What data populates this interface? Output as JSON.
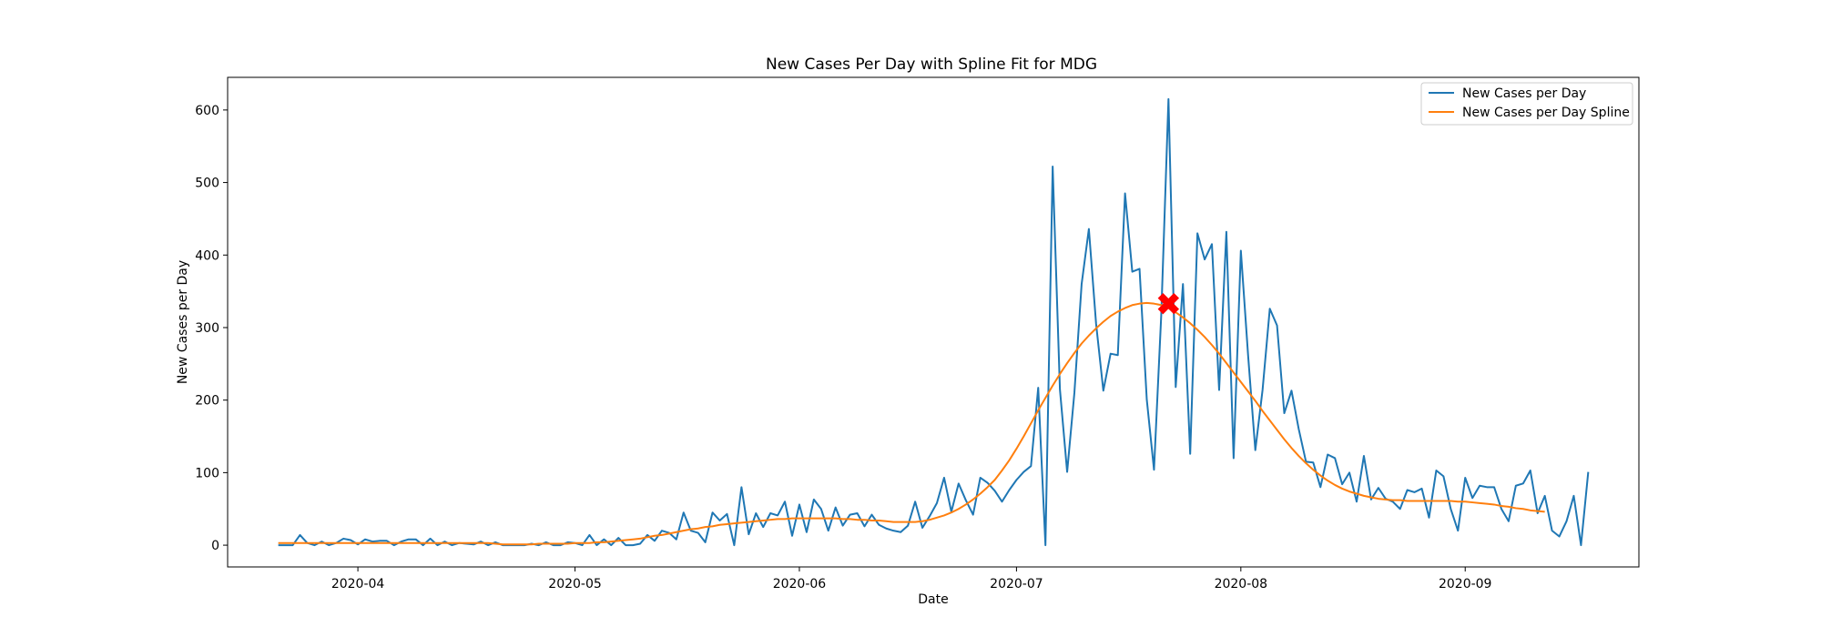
{
  "chart_data": {
    "type": "line",
    "title": "New Cases Per Day with Spline Fit for MDG",
    "xlabel": "Date",
    "ylabel": "New Cases per Day",
    "x_start": "2020-03-21",
    "x_end": "2020-09-18",
    "xlim": [
      "2020-03-14",
      "2020-09-25"
    ],
    "ylim": [
      -30,
      645
    ],
    "x_ticks": [
      "2020-04",
      "2020-05",
      "2020-06",
      "2020-07",
      "2020-08",
      "2020-09"
    ],
    "y_ticks": [
      0,
      100,
      200,
      300,
      400,
      500,
      600
    ],
    "grid": false,
    "legend_position": "top-right",
    "series": [
      {
        "name": "New Cases per Day",
        "color": "#1f77b4",
        "values": [
          0,
          0,
          0,
          14,
          3,
          0,
          5,
          0,
          3,
          9,
          7,
          1,
          8,
          5,
          6,
          6,
          0,
          5,
          8,
          8,
          0,
          9,
          0,
          5,
          0,
          3,
          2,
          1,
          5,
          0,
          4,
          0,
          0,
          0,
          0,
          2,
          0,
          4,
          0,
          0,
          4,
          3,
          0,
          14,
          0,
          8,
          0,
          10,
          0,
          0,
          2,
          14,
          6,
          20,
          17,
          8,
          45,
          20,
          17,
          4,
          45,
          34,
          43,
          0,
          80,
          15,
          44,
          25,
          44,
          41,
          60,
          13,
          56,
          18,
          63,
          50,
          20,
          52,
          27,
          42,
          44,
          26,
          42,
          28,
          23,
          20,
          18,
          27,
          60,
          24,
          40,
          58,
          93,
          46,
          85,
          62,
          42,
          93,
          86,
          75,
          60,
          76,
          90,
          101,
          109,
          217,
          0,
          522,
          215,
          101,
          210,
          360,
          436,
          305,
          213,
          264,
          262,
          485,
          377,
          381,
          201,
          104,
          317,
          615,
          218,
          360,
          126,
          430,
          394,
          415,
          214,
          432,
          120,
          406,
          262,
          131,
          214,
          326,
          303,
          182,
          213,
          160,
          115,
          114,
          80,
          125,
          120,
          84,
          100,
          60,
          123,
          63,
          79,
          64,
          60,
          50,
          76,
          73,
          78,
          38,
          103,
          95,
          50,
          20,
          93,
          65,
          82,
          80,
          80,
          50,
          33,
          82,
          85,
          103,
          44,
          68,
          20,
          12,
          33,
          68,
          0,
          101
        ]
      },
      {
        "name": "New Cases per Day Spline",
        "color": "#ff7f0e",
        "values": [
          3,
          3,
          3,
          3,
          3,
          3,
          3,
          3,
          3,
          3,
          3,
          3,
          3,
          3,
          3,
          3,
          3,
          3,
          3,
          3,
          3,
          3,
          3,
          3,
          3,
          3,
          3,
          3,
          3,
          3,
          2,
          1,
          1,
          1,
          1,
          1,
          2,
          2,
          2,
          2,
          2,
          3,
          3,
          3,
          4,
          4,
          5,
          6,
          7,
          8,
          9,
          11,
          13,
          14,
          16,
          18,
          20,
          22,
          23,
          25,
          26,
          28,
          29,
          30,
          31,
          32,
          33,
          34,
          35,
          36,
          36,
          37,
          37,
          37,
          37,
          37,
          37,
          37,
          36,
          36,
          35,
          35,
          34,
          34,
          33,
          32,
          32,
          32,
          32,
          33,
          35,
          38,
          41,
          45,
          50,
          56,
          63,
          71,
          80,
          90,
          103,
          117,
          133,
          150,
          168,
          186,
          203,
          220,
          236,
          251,
          265,
          278,
          289,
          299,
          308,
          316,
          322,
          327,
          331,
          333,
          334,
          333,
          331,
          327,
          321,
          314,
          306,
          297,
          287,
          276,
          264,
          251,
          238,
          225,
          212,
          199,
          185,
          172,
          159,
          146,
          134,
          123,
          113,
          104,
          96,
          89,
          83,
          78,
          74,
          71,
          68,
          66,
          64,
          63,
          62,
          62,
          61,
          61,
          61,
          61,
          61,
          61,
          61,
          60,
          60,
          59,
          58,
          57,
          56,
          54,
          53,
          51,
          50,
          48,
          47,
          46
        ]
      }
    ],
    "marker": {
      "date": "2020-07-22",
      "value": 333,
      "symbol": "X",
      "color": "#ff0000"
    }
  }
}
